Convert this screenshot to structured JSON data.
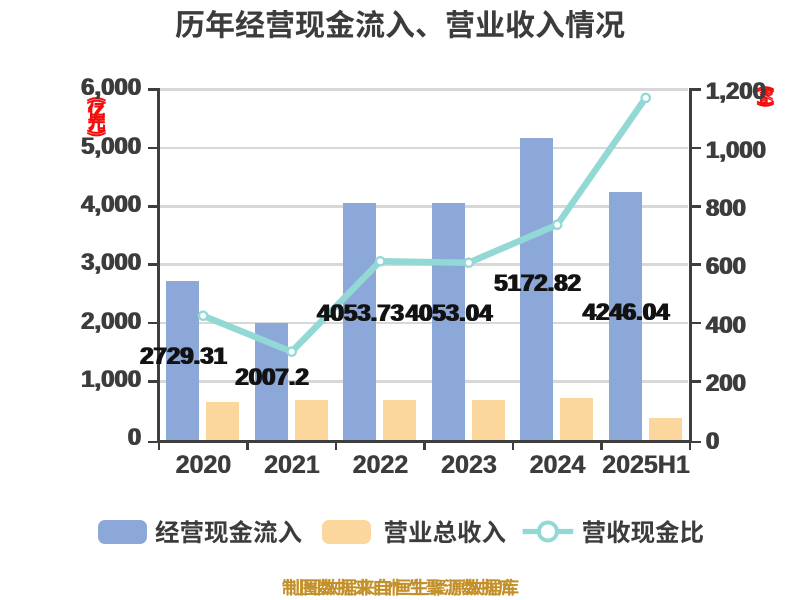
{
  "chart_data": {
    "type": "combo-bar-line",
    "title": "历年经营现金流入、营业收入情况",
    "categories": [
      "2020",
      "2021",
      "2022",
      "2023",
      "2024",
      "2025H1"
    ],
    "series": [
      {
        "name": "经营现金流入",
        "type": "bar",
        "axis": "left",
        "color": "#8CA8D9",
        "values": [
          2729.31,
          2007.2,
          4053.73,
          4053.04,
          5172.82,
          4246.04
        ],
        "data_labels": [
          "2729.31",
          "2007.2",
          "4053.73",
          "4053.04",
          "5172.82",
          "4246.04"
        ]
      },
      {
        "name": "营业总收入",
        "type": "bar",
        "axis": "left",
        "color": "#FBD79E",
        "values": [
          655,
          689,
          689,
          682,
          710,
          379
        ]
      },
      {
        "name": "营收现金比",
        "type": "line",
        "axis": "right",
        "color": "#92D8D4",
        "values": [
          425,
          302,
          612,
          607,
          737,
          1172
        ]
      }
    ],
    "left_axis": {
      "unit": "(亿元)",
      "unit_color": "#F40D0D",
      "min": 0,
      "max": 6000,
      "step": 1000,
      "ticks": [
        "0",
        "1,000",
        "2,000",
        "3,000",
        "4,000",
        "5,000",
        "6,000"
      ]
    },
    "right_axis": {
      "unit": "(%)",
      "unit_color": "#F40D0D",
      "min": 0,
      "max": 1200,
      "step": 200,
      "ticks": [
        "0",
        "200",
        "400",
        "600",
        "800",
        "1,000",
        "1,200"
      ]
    },
    "legend": {
      "position": "bottom",
      "items": [
        {
          "label": "经营现金流入",
          "swatch": "bar",
          "color": "#8CA8D9"
        },
        {
          "label": "营业总收入",
          "swatch": "bar",
          "color": "#FBD79E"
        },
        {
          "label": "营收现金比",
          "swatch": "line-marker",
          "color": "#92D8D4"
        }
      ]
    },
    "footnote": "制图数据来自恒生聚源数据库",
    "grid": true,
    "background": "#FFFFFF"
  },
  "colors": {
    "bar_blue": "#8CA8D9",
    "bar_orange": "#FBD79E",
    "line_teal": "#92D8D4",
    "grid": "#D8D8D8",
    "axis": "#3E3E3E",
    "text": "#3C3C3C",
    "value_label": "#121212",
    "unit_red": "#F40D0D",
    "footnote_gold": "#C3912C"
  }
}
